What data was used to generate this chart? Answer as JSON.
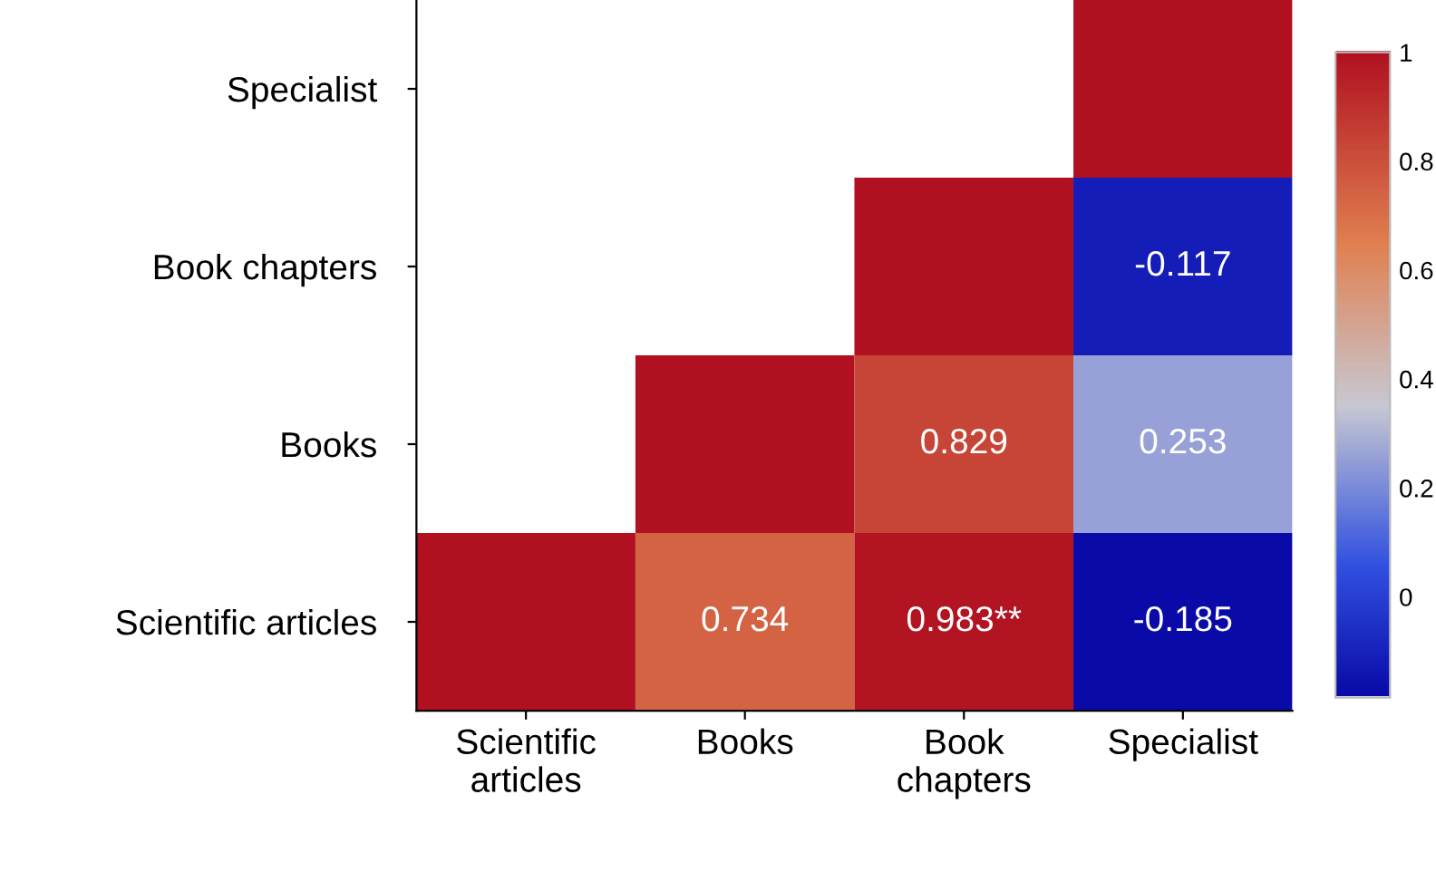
{
  "chart_data": {
    "type": "heatmap",
    "categories": [
      "Scientific\narticles",
      "Books",
      "Book\nchapters",
      "Specialist"
    ],
    "y_categories": [
      "Specialist",
      "Book chapters",
      "Books",
      "Scientific articles"
    ],
    "cells": [
      [
        null,
        null,
        null,
        1
      ],
      [
        null,
        null,
        1,
        -0.117
      ],
      [
        null,
        1,
        0.829,
        0.253
      ],
      [
        1,
        0.734,
        0.983,
        -0.185
      ]
    ],
    "cell_labels": [
      [
        null,
        null,
        null,
        null
      ],
      [
        null,
        null,
        null,
        "-0.117"
      ],
      [
        null,
        null,
        "0.829",
        "0.253"
      ],
      [
        null,
        "0.734",
        "0.983**",
        "-0.185"
      ]
    ],
    "clim": [
      -0.185,
      1
    ],
    "cticks": [
      0,
      0.2,
      0.4,
      0.6,
      0.8,
      1
    ]
  }
}
